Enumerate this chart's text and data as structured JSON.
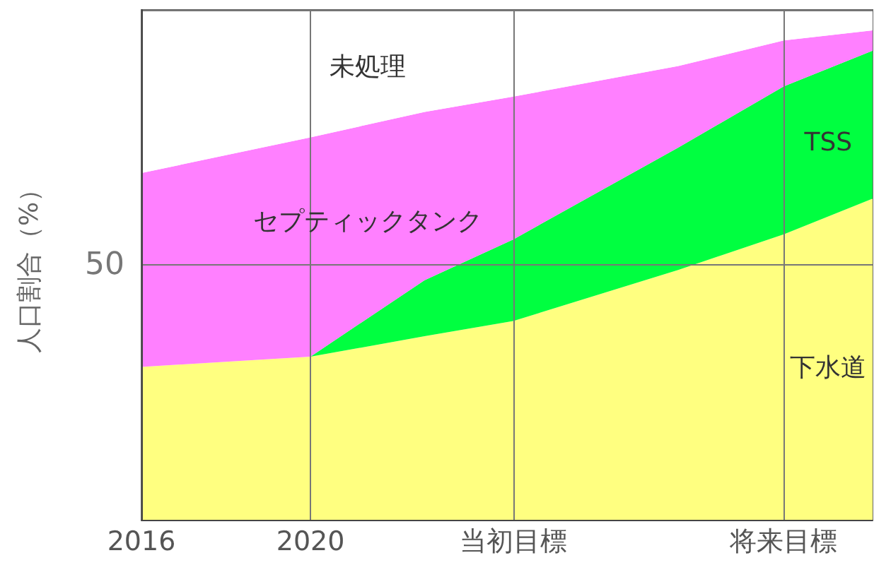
{
  "chart_data": {
    "type": "area",
    "stacked": true,
    "ylabel": "人口割合（%）",
    "x": [
      2016,
      2020,
      2022.7,
      2024.8,
      2028.7,
      2031.2,
      2033.3
    ],
    "xlim": [
      2016,
      2033.3
    ],
    "xticks": [
      2016,
      2020,
      {
        "value": 2024.8,
        "label": "当初目標"
      },
      {
        "value": 2031.2,
        "label": "将来目標"
      }
    ],
    "ylim": [
      0,
      100
    ],
    "yticks": [
      {
        "value": 0,
        "label": null
      },
      50,
      {
        "value": 100,
        "label": null
      }
    ],
    "grid": true,
    "legend": false,
    "series": [
      {
        "name": "下水道",
        "color": "#ffff80",
        "values": [
          30,
          32,
          36,
          39,
          49,
          56,
          63
        ]
      },
      {
        "name": "TSS",
        "color": "#00ff40",
        "values": [
          0,
          0,
          11,
          16,
          24,
          29,
          29
        ]
      },
      {
        "name": "セプティックタンク",
        "color": "#ff80ff",
        "values": [
          38,
          43,
          33,
          28,
          16,
          9,
          4
        ]
      },
      {
        "name": "未処理",
        "color": "#ffffff",
        "values": [
          32,
          25,
          20,
          17,
          11,
          6,
          4
        ]
      }
    ]
  }
}
